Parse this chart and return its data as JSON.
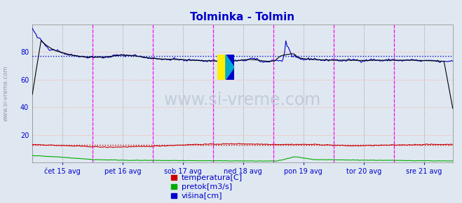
{
  "title": "Tolminka - Tolmin",
  "title_color": "#0000cc",
  "title_fontsize": 11,
  "bg_color": "#dfe8f0",
  "plot_bg_color": "#dfe8f0",
  "watermark_text": "www.si-vreme.com",
  "xlim": [
    0,
    335
  ],
  "ylim": [
    0,
    100
  ],
  "yticks": [
    20,
    40,
    60,
    80
  ],
  "hgrid_color": "#ffaaaa",
  "vgrid_color": "#aaaaaa",
  "day_lines_color": "#ff00ff",
  "x_tick_labels": [
    "čet 15 avg",
    "pet 16 avg",
    "sob 17 avg",
    "ned 18 avg",
    "pon 19 avg",
    "tor 20 avg",
    "sre 21 avg"
  ],
  "x_tick_positions": [
    24,
    72,
    120,
    168,
    216,
    264,
    312
  ],
  "day_line_positions": [
    48,
    96,
    144,
    192,
    240,
    288
  ],
  "temp_color": "#cc0000",
  "pretok_color": "#00aa00",
  "visina_color": "#0000cc",
  "black_color": "#000000",
  "legend_color": "#0000cc",
  "legend_fontsize": 8,
  "legend_labels": [
    "temperatura[C]",
    "pretok[m3/s]",
    "višina[cm]"
  ],
  "legend_colors": [
    "#cc0000",
    "#00aa00",
    "#0000cc"
  ]
}
